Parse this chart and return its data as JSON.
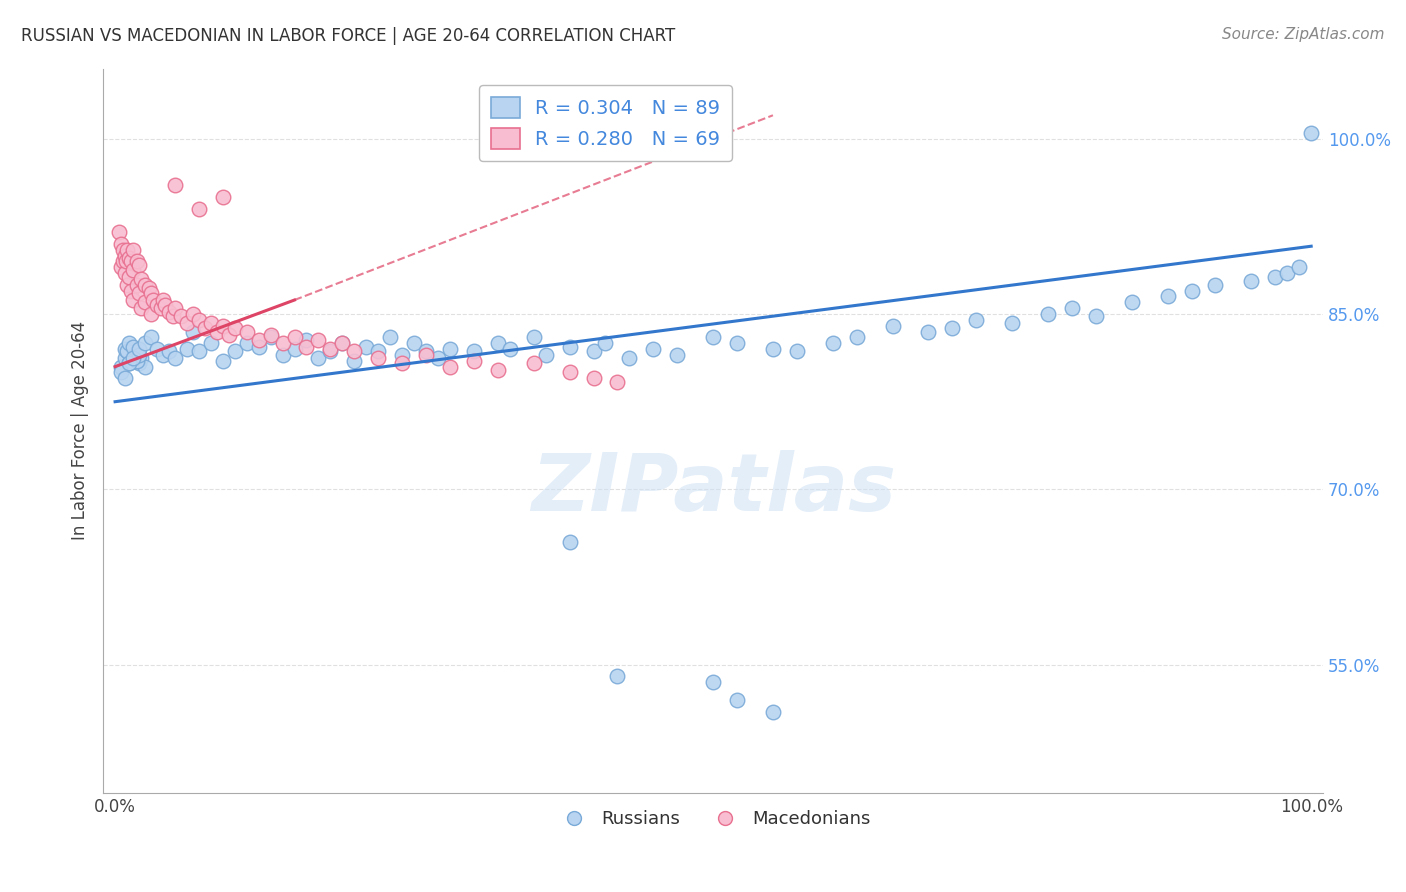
{
  "title": "RUSSIAN VS MACEDONIAN IN LABOR FORCE | AGE 20-64 CORRELATION CHART",
  "source": "Source: ZipAtlas.com",
  "ylabel": "In Labor Force | Age 20-64",
  "xlim": [
    -0.01,
    1.01
  ],
  "ylim": [
    0.44,
    1.06
  ],
  "yticks": [
    0.55,
    0.7,
    0.85,
    1.0
  ],
  "yticklabels": [
    "55.0%",
    "70.0%",
    "85.0%",
    "100.0%"
  ],
  "russian_R": 0.304,
  "russian_N": 89,
  "macedonian_R": 0.28,
  "macedonian_N": 69,
  "russian_color": "#b8d4f0",
  "russian_edge": "#7aaad8",
  "macedonian_color": "#f8bdd0",
  "macedonian_edge": "#e87090",
  "trend_russian_color": "#3377cc",
  "trend_macedonian_color": "#dd4466",
  "trend_rus_x0": 0.0,
  "trend_rus_y0": 0.775,
  "trend_rus_x1": 1.0,
  "trend_rus_y1": 0.908,
  "trend_mac_x0": 0.0,
  "trend_mac_y0": 0.805,
  "trend_mac_x1": 0.15,
  "trend_mac_y1": 0.862,
  "trend_mac_dashed_x1": 0.55,
  "trend_mac_dashed_y1": 1.02,
  "watermark": "ZIPatlas",
  "grid_color": "#dddddd",
  "russian_x": [
    0.005,
    0.008,
    0.01,
    0.012,
    0.015,
    0.018,
    0.02,
    0.022,
    0.025,
    0.008,
    0.01,
    0.012,
    0.015,
    0.018,
    0.02,
    0.005,
    0.008,
    0.012,
    0.015,
    0.02,
    0.025,
    0.03,
    0.035,
    0.04,
    0.045,
    0.05,
    0.06,
    0.065,
    0.07,
    0.08,
    0.09,
    0.1,
    0.11,
    0.12,
    0.13,
    0.14,
    0.15,
    0.16,
    0.17,
    0.18,
    0.19,
    0.2,
    0.21,
    0.22,
    0.23,
    0.24,
    0.25,
    0.26,
    0.27,
    0.28,
    0.3,
    0.32,
    0.33,
    0.35,
    0.36,
    0.38,
    0.4,
    0.41,
    0.43,
    0.45,
    0.47,
    0.5,
    0.52,
    0.55,
    0.57,
    0.6,
    0.62,
    0.65,
    0.68,
    0.7,
    0.72,
    0.75,
    0.78,
    0.8,
    0.82,
    0.85,
    0.88,
    0.9,
    0.92,
    0.95,
    0.97,
    0.98,
    0.99,
    1.0,
    0.5,
    0.52,
    0.55,
    0.38,
    0.42
  ],
  "russian_y": [
    0.805,
    0.812,
    0.818,
    0.808,
    0.815,
    0.81,
    0.808,
    0.812,
    0.805,
    0.82,
    0.818,
    0.825,
    0.822,
    0.81,
    0.815,
    0.8,
    0.795,
    0.808,
    0.812,
    0.82,
    0.825,
    0.83,
    0.82,
    0.815,
    0.818,
    0.812,
    0.82,
    0.835,
    0.818,
    0.825,
    0.81,
    0.818,
    0.825,
    0.822,
    0.83,
    0.815,
    0.82,
    0.828,
    0.812,
    0.818,
    0.825,
    0.81,
    0.822,
    0.818,
    0.83,
    0.815,
    0.825,
    0.818,
    0.812,
    0.82,
    0.818,
    0.825,
    0.82,
    0.83,
    0.815,
    0.822,
    0.818,
    0.825,
    0.812,
    0.82,
    0.815,
    0.83,
    0.825,
    0.82,
    0.818,
    0.825,
    0.83,
    0.84,
    0.835,
    0.838,
    0.845,
    0.842,
    0.85,
    0.855,
    0.848,
    0.86,
    0.865,
    0.87,
    0.875,
    0.878,
    0.882,
    0.885,
    0.89,
    1.005,
    0.535,
    0.52,
    0.51,
    0.655,
    0.54
  ],
  "macedonian_x": [
    0.003,
    0.005,
    0.005,
    0.007,
    0.007,
    0.008,
    0.008,
    0.009,
    0.01,
    0.01,
    0.012,
    0.012,
    0.013,
    0.013,
    0.015,
    0.015,
    0.015,
    0.018,
    0.018,
    0.02,
    0.02,
    0.022,
    0.022,
    0.025,
    0.025,
    0.028,
    0.03,
    0.03,
    0.032,
    0.035,
    0.038,
    0.04,
    0.042,
    0.045,
    0.048,
    0.05,
    0.055,
    0.06,
    0.065,
    0.07,
    0.075,
    0.08,
    0.085,
    0.09,
    0.095,
    0.1,
    0.11,
    0.12,
    0.13,
    0.14,
    0.15,
    0.16,
    0.17,
    0.18,
    0.19,
    0.2,
    0.22,
    0.24,
    0.26,
    0.28,
    0.3,
    0.32,
    0.35,
    0.38,
    0.4,
    0.42,
    0.05,
    0.07,
    0.09
  ],
  "macedonian_y": [
    0.92,
    0.91,
    0.89,
    0.905,
    0.895,
    0.9,
    0.885,
    0.895,
    0.905,
    0.875,
    0.898,
    0.882,
    0.895,
    0.87,
    0.905,
    0.888,
    0.862,
    0.895,
    0.875,
    0.892,
    0.868,
    0.88,
    0.855,
    0.875,
    0.86,
    0.872,
    0.868,
    0.85,
    0.862,
    0.858,
    0.855,
    0.862,
    0.858,
    0.852,
    0.848,
    0.855,
    0.848,
    0.842,
    0.85,
    0.845,
    0.838,
    0.842,
    0.835,
    0.84,
    0.832,
    0.838,
    0.835,
    0.828,
    0.832,
    0.825,
    0.83,
    0.822,
    0.828,
    0.82,
    0.825,
    0.818,
    0.812,
    0.808,
    0.815,
    0.805,
    0.81,
    0.802,
    0.808,
    0.8,
    0.795,
    0.792,
    0.96,
    0.94,
    0.95
  ]
}
